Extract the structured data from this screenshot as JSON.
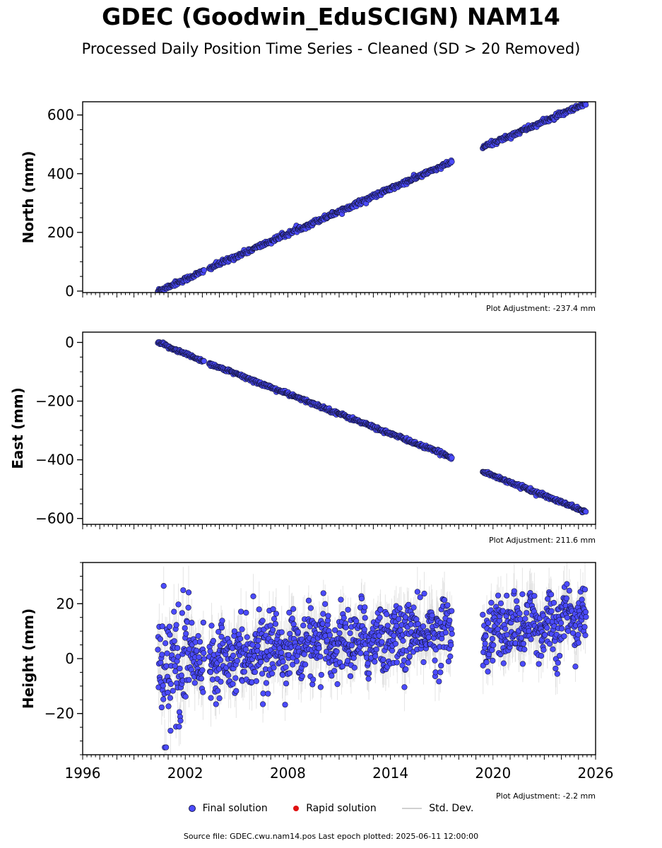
{
  "header": {
    "title": "GDEC (Goodwin_EduSCIGN) NAM14",
    "subtitle": "Processed Daily Position Time Series - Cleaned (SD > 20 Removed)"
  },
  "legend": {
    "final_label": "Final solution",
    "rapid_label": "Rapid solution",
    "std_label": "Std. Dev.",
    "final_color": "#4b4bff",
    "rapid_color": "#e01010",
    "std_color": "#d0d0d0"
  },
  "footer": {
    "source": "Source file: GDEC.cwu.nam14.pos  Last epoch plotted: 2025-06-11 12:00:00"
  },
  "chart_data": [
    {
      "type": "scatter",
      "component": "north",
      "ylabel": "North (mm)",
      "xlim": [
        1996,
        2026
      ],
      "ylim": [
        -5,
        645
      ],
      "yticks": [
        0,
        200,
        400,
        600
      ],
      "ytick_labels": [
        "0",
        "200",
        "400",
        "600"
      ],
      "adjustment": "Plot Adjustment: -237.4 mm",
      "segments": [
        {
          "x": [
            2000.4,
            2003.1
          ],
          "y": [
            0,
            68
          ]
        },
        {
          "x": [
            2003.4,
            2017.6
          ],
          "y": [
            78,
            440
          ]
        },
        {
          "x": [
            2019.4,
            2025.45
          ],
          "y": [
            490,
            638
          ]
        }
      ],
      "noise": 4,
      "sd": 3
    },
    {
      "type": "scatter",
      "component": "east",
      "ylabel": "East (mm)",
      "xlim": [
        1996,
        2026
      ],
      "ylim": [
        -620,
        35
      ],
      "yticks": [
        0,
        -200,
        -400,
        -600
      ],
      "ytick_labels": [
        "0",
        "−200",
        "−400",
        "−600"
      ],
      "adjustment": "Plot Adjustment: 211.6 mm",
      "segments": [
        {
          "x": [
            2000.4,
            2003.1
          ],
          "y": [
            0,
            -65
          ]
        },
        {
          "x": [
            2003.4,
            2017.6
          ],
          "y": [
            -72,
            -392
          ]
        },
        {
          "x": [
            2019.4,
            2025.45
          ],
          "y": [
            -440,
            -578
          ]
        }
      ],
      "noise": 3,
      "sd": 3
    },
    {
      "type": "scatter",
      "component": "height",
      "ylabel": "Height (mm)",
      "xlim": [
        1996,
        2026
      ],
      "ylim": [
        -35,
        35
      ],
      "yticks": [
        20,
        0,
        -20
      ],
      "ytick_labels": [
        "20",
        "0",
        "−20"
      ],
      "xticks": [
        1996,
        2002,
        2008,
        2014,
        2020,
        2026
      ],
      "xtick_labels": [
        "1996",
        "2002",
        "2008",
        "2014",
        "2020",
        "2026"
      ],
      "adjustment": "Plot Adjustment: -2.2 mm",
      "segments": [
        {
          "x": [
            2000.4,
            2003.1
          ],
          "y": [
            -4,
            2
          ]
        },
        {
          "x": [
            2003.4,
            2017.6
          ],
          "y": [
            1,
            10
          ]
        },
        {
          "x": [
            2019.4,
            2025.45
          ],
          "y": [
            9,
            15
          ]
        }
      ],
      "noise": 6,
      "sd": 7
    }
  ]
}
